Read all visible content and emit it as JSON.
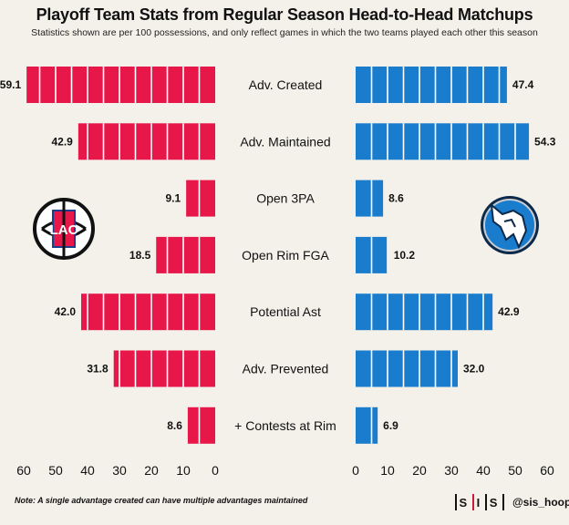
{
  "title": "Playoff Team Stats from Regular Season Head-to-Head Matchups",
  "subtitle": "Statistics shown are per 100 possessions, and only reflect games in which the two teams played each other this season",
  "note": "Note: A single advantage created can have multiple advantages maintained",
  "brand": {
    "logo_left": "S",
    "logo_mid": "I",
    "logo_right": "S",
    "handle": "@sis_hoops"
  },
  "team_logos": {
    "left": "LAC",
    "right": "dallas-mavericks-logo"
  },
  "colors": {
    "left": "#e8174a",
    "right": "#1a7ccc",
    "background": "#f4f1ea"
  },
  "chart_data": {
    "type": "bar",
    "categories": [
      "Adv. Created",
      "Adv. Maintained",
      "Open 3PA",
      "Open Rim FGA",
      "Potential Ast",
      "Adv. Prevented",
      "+ Contests at Rim"
    ],
    "series": [
      {
        "values": [
          59.1,
          42.9,
          9.1,
          18.5,
          42.0,
          31.8,
          8.6
        ],
        "labels": [
          "59.1",
          "42.9",
          "9.1",
          "18.5",
          "42.0",
          "31.8",
          "8.6"
        ]
      },
      {
        "values": [
          47.4,
          54.3,
          8.6,
          10.2,
          42.9,
          32.0,
          6.9
        ],
        "labels": [
          "47.4",
          "54.3",
          "8.6",
          "10.2",
          "42.9",
          "32.0",
          "6.9"
        ]
      }
    ],
    "left_ticks": [
      "60",
      "50",
      "40",
      "30",
      "20",
      "10",
      "0"
    ],
    "right_ticks": [
      "0",
      "10",
      "20",
      "30",
      "40",
      "50",
      "60"
    ],
    "xlim": [
      0,
      60
    ],
    "grid": false,
    "legend": "none"
  }
}
